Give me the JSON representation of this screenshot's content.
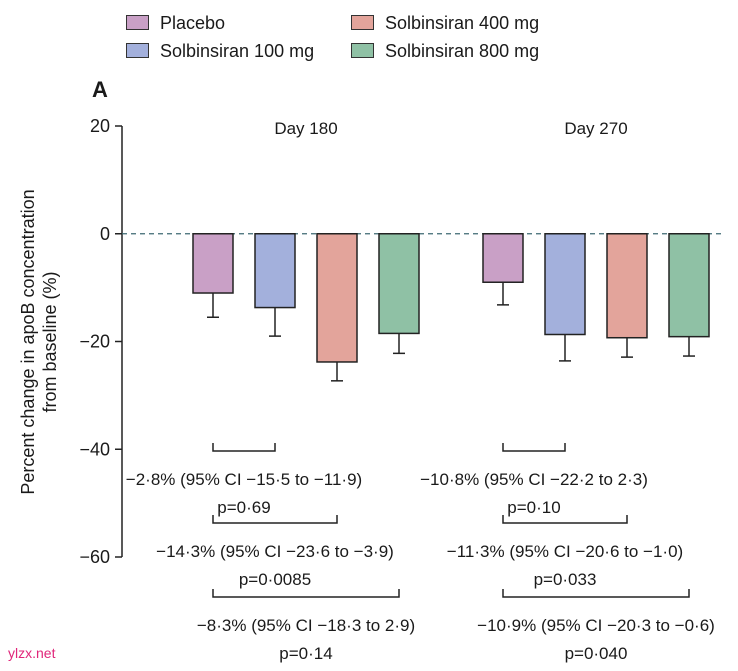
{
  "legend": [
    {
      "label": "Placebo",
      "color": "#c9a0c6"
    },
    {
      "label": "Solbinsiran 400 mg",
      "color": "#e3a49b"
    },
    {
      "label": "Solbinsiran 100 mg",
      "color": "#a3b0dc"
    },
    {
      "label": "Solbinsiran 800 mg",
      "color": "#8fc1a5"
    }
  ],
  "panel_label": "A",
  "watermark": "ylzx.net",
  "chart_data": {
    "type": "bar",
    "ylabel_lines": [
      "Percent change in apoB concentration",
      "from baseline (%)"
    ],
    "ylim": [
      -60,
      20
    ],
    "yticks": [
      20,
      0,
      -20,
      -40,
      -60
    ],
    "ytick_labels": [
      "20",
      "0",
      "−20",
      "−40",
      "−60"
    ],
    "groups": [
      "Day 180",
      "Day 270"
    ],
    "series": [
      {
        "name": "Placebo",
        "color": "#c9a0c6",
        "values": [
          -11,
          -9
        ],
        "err_low": [
          -15.5,
          -13.2
        ]
      },
      {
        "name": "Solbinsiran 100 mg",
        "color": "#a3b0dc",
        "values": [
          -13.7,
          -18.7
        ],
        "err_low": [
          -19,
          -23.6
        ]
      },
      {
        "name": "Solbinsiran 400 mg",
        "color": "#e3a49b",
        "values": [
          -23.8,
          -19.3
        ],
        "err_low": [
          -27.3,
          -22.9
        ]
      },
      {
        "name": "Solbinsiran 800 mg",
        "color": "#8fc1a5",
        "values": [
          -18.5,
          -19.1
        ],
        "err_low": [
          -22.2,
          -22.7
        ]
      }
    ],
    "comparisons": [
      {
        "group": 0,
        "vs": 1,
        "line1": "−2·8% (95% CI −15·5 to −11·9)",
        "line2": "p=0·69"
      },
      {
        "group": 0,
        "vs": 2,
        "line1": "−14·3% (95% CI −23·6 to −3·9)",
        "line2": "p=0·0085"
      },
      {
        "group": 0,
        "vs": 3,
        "line1": "−8·3% (95% CI −18·3 to 2·9)",
        "line2": "p=0·14"
      },
      {
        "group": 1,
        "vs": 1,
        "line1": "−10·8% (95% CI −22·2 to 2·3)",
        "line2": "p=0·10"
      },
      {
        "group": 1,
        "vs": 2,
        "line1": "−11·3% (95% CI −20·6 to −1·0)",
        "line2": "p=0·033"
      },
      {
        "group": 1,
        "vs": 3,
        "line1": "−10·9% (95% CI −20·3 to −0·6)",
        "line2": "p=0·040"
      }
    ]
  }
}
